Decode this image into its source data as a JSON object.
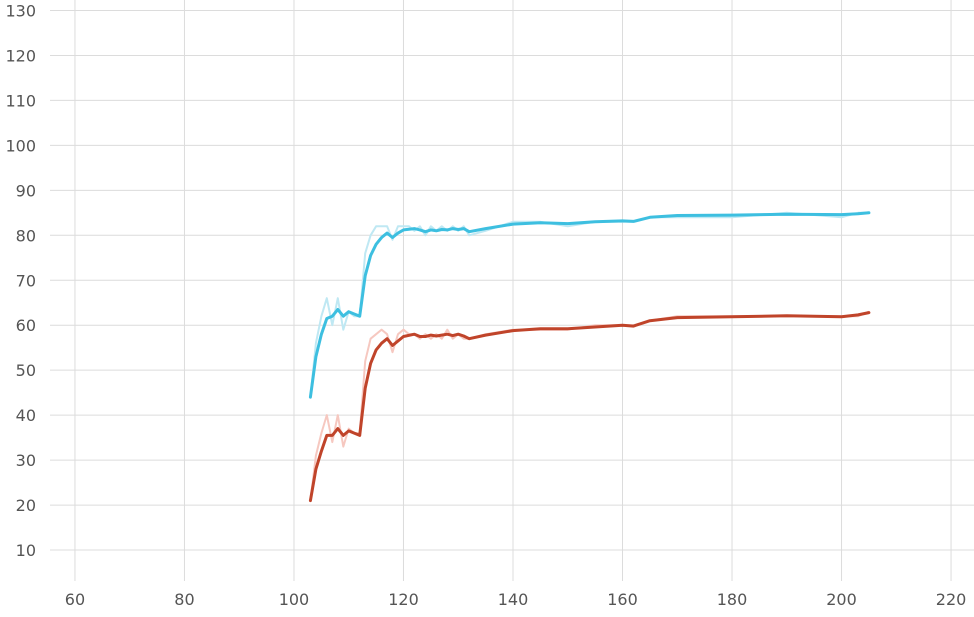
{
  "chart_data": {
    "type": "line",
    "title": "",
    "xlabel": "",
    "ylabel": "",
    "xlim": [
      58,
      222
    ],
    "ylim": [
      4,
      131
    ],
    "x_ticks": [
      60,
      80,
      100,
      120,
      140,
      160,
      180,
      200,
      220
    ],
    "y_ticks": [
      10,
      20,
      30,
      40,
      50,
      60,
      70,
      80,
      90,
      100,
      110,
      120,
      130
    ],
    "grid": true,
    "legend": "none",
    "series": [
      {
        "color": "#3dbfe0",
        "raw_color": "#bfe8f3",
        "raw": [
          [
            103,
            44
          ],
          [
            104,
            56
          ],
          [
            105,
            62
          ],
          [
            106,
            66
          ],
          [
            107,
            60
          ],
          [
            108,
            66
          ],
          [
            109,
            59
          ],
          [
            110,
            63
          ],
          [
            111,
            62
          ],
          [
            112,
            62
          ],
          [
            113,
            76
          ],
          [
            114,
            80
          ],
          [
            115,
            82
          ],
          [
            116,
            82
          ],
          [
            117,
            82
          ],
          [
            118,
            79
          ],
          [
            119,
            82
          ],
          [
            120,
            82
          ],
          [
            121,
            82
          ],
          [
            122,
            81
          ],
          [
            123,
            82
          ],
          [
            124,
            80
          ],
          [
            125,
            82
          ],
          [
            126,
            81
          ],
          [
            127,
            82
          ],
          [
            128,
            81
          ],
          [
            129,
            82
          ],
          [
            130,
            81
          ],
          [
            131,
            82
          ],
          [
            132,
            80
          ],
          [
            135,
            81
          ],
          [
            140,
            83
          ],
          [
            145,
            83
          ],
          [
            150,
            82
          ],
          [
            155,
            83
          ],
          [
            160,
            83
          ],
          [
            162,
            83
          ],
          [
            165,
            84
          ],
          [
            170,
            84
          ],
          [
            180,
            84
          ],
          [
            190,
            85
          ],
          [
            200,
            84
          ],
          [
            203,
            85
          ],
          [
            205,
            85
          ]
        ],
        "smoothed": [
          [
            103,
            44
          ],
          [
            104,
            53
          ],
          [
            105,
            58
          ],
          [
            106,
            61.5
          ],
          [
            107,
            62
          ],
          [
            108,
            63.5
          ],
          [
            109,
            62
          ],
          [
            110,
            63
          ],
          [
            111,
            62.5
          ],
          [
            112,
            62
          ],
          [
            113,
            71
          ],
          [
            114,
            75.5
          ],
          [
            115,
            78
          ],
          [
            116,
            79.5
          ],
          [
            117,
            80.5
          ],
          [
            118,
            79.5
          ],
          [
            119,
            80.5
          ],
          [
            120,
            81.2
          ],
          [
            122,
            81.5
          ],
          [
            123,
            81.2
          ],
          [
            124,
            80.8
          ],
          [
            125,
            81.2
          ],
          [
            126,
            81
          ],
          [
            127,
            81.3
          ],
          [
            128,
            81.2
          ],
          [
            129,
            81.5
          ],
          [
            130,
            81.3
          ],
          [
            131,
            81.5
          ],
          [
            132,
            80.8
          ],
          [
            135,
            81.5
          ],
          [
            140,
            82.5
          ],
          [
            145,
            82.8
          ],
          [
            150,
            82.6
          ],
          [
            155,
            83
          ],
          [
            160,
            83.2
          ],
          [
            162,
            83.1
          ],
          [
            165,
            84
          ],
          [
            170,
            84.4
          ],
          [
            180,
            84.5
          ],
          [
            190,
            84.7
          ],
          [
            200,
            84.6
          ],
          [
            203,
            84.8
          ],
          [
            205,
            85
          ]
        ]
      },
      {
        "color": "#c0442a",
        "raw_color": "#f6c8c0",
        "raw": [
          [
            103,
            21
          ],
          [
            104,
            31
          ],
          [
            105,
            36
          ],
          [
            106,
            40
          ],
          [
            107,
            34
          ],
          [
            108,
            40
          ],
          [
            109,
            33
          ],
          [
            110,
            37
          ],
          [
            111,
            36
          ],
          [
            112,
            36
          ],
          [
            113,
            52
          ],
          [
            114,
            57
          ],
          [
            115,
            58
          ],
          [
            116,
            59
          ],
          [
            117,
            58
          ],
          [
            118,
            54
          ],
          [
            119,
            58
          ],
          [
            120,
            59
          ],
          [
            121,
            58
          ],
          [
            122,
            58
          ],
          [
            123,
            57
          ],
          [
            124,
            58
          ],
          [
            125,
            57
          ],
          [
            126,
            58
          ],
          [
            127,
            57
          ],
          [
            128,
            59
          ],
          [
            129,
            57
          ],
          [
            130,
            58
          ],
          [
            131,
            57
          ],
          [
            132,
            57
          ],
          [
            135,
            58
          ],
          [
            140,
            59
          ],
          [
            145,
            59
          ],
          [
            150,
            59
          ],
          [
            155,
            60
          ],
          [
            160,
            60
          ],
          [
            162,
            60
          ],
          [
            165,
            61
          ],
          [
            170,
            62
          ],
          [
            180,
            62
          ],
          [
            190,
            62
          ],
          [
            200,
            62
          ],
          [
            203,
            62
          ],
          [
            205,
            63
          ]
        ],
        "smoothed": [
          [
            103,
            21
          ],
          [
            104,
            28
          ],
          [
            105,
            32
          ],
          [
            106,
            35.5
          ],
          [
            107,
            35.5
          ],
          [
            108,
            37
          ],
          [
            109,
            35.5
          ],
          [
            110,
            36.5
          ],
          [
            111,
            36
          ],
          [
            112,
            35.5
          ],
          [
            113,
            46
          ],
          [
            114,
            51.5
          ],
          [
            115,
            54.5
          ],
          [
            116,
            56
          ],
          [
            117,
            57
          ],
          [
            118,
            55.5
          ],
          [
            119,
            56.5
          ],
          [
            120,
            57.5
          ],
          [
            122,
            58
          ],
          [
            123,
            57.5
          ],
          [
            124,
            57.5
          ],
          [
            125,
            57.8
          ],
          [
            126,
            57.6
          ],
          [
            127,
            57.8
          ],
          [
            128,
            58
          ],
          [
            129,
            57.7
          ],
          [
            130,
            58
          ],
          [
            131,
            57.6
          ],
          [
            132,
            57
          ],
          [
            135,
            57.8
          ],
          [
            140,
            58.8
          ],
          [
            145,
            59.2
          ],
          [
            150,
            59.2
          ],
          [
            155,
            59.6
          ],
          [
            160,
            60
          ],
          [
            162,
            59.8
          ],
          [
            165,
            61
          ],
          [
            170,
            61.7
          ],
          [
            180,
            61.9
          ],
          [
            190,
            62.1
          ],
          [
            200,
            61.9
          ],
          [
            203,
            62.3
          ],
          [
            205,
            62.8
          ]
        ]
      }
    ]
  }
}
